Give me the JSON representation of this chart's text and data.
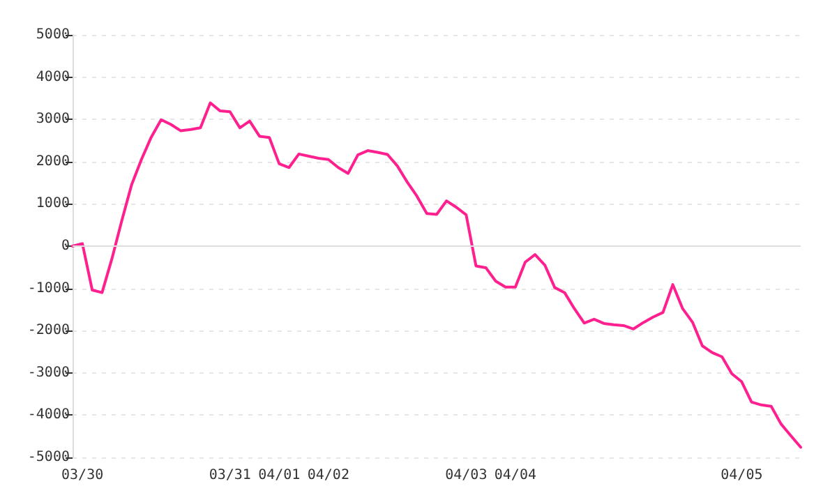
{
  "chart_data": {
    "type": "line",
    "categories": [
      null,
      "03/30",
      null,
      null,
      null,
      null,
      null,
      null,
      null,
      null,
      null,
      null,
      null,
      null,
      null,
      null,
      "03/31",
      null,
      null,
      null,
      null,
      "04/01",
      null,
      null,
      null,
      null,
      "04/02",
      null,
      null,
      null,
      null,
      null,
      null,
      null,
      null,
      null,
      null,
      null,
      null,
      null,
      "04/03",
      null,
      null,
      null,
      null,
      "04/04",
      null,
      null,
      null,
      null,
      null,
      null,
      null,
      null,
      null,
      null,
      null,
      null,
      null,
      null,
      null,
      null,
      null,
      null,
      null,
      null,
      null,
      null,
      "04/05",
      null,
      null,
      null,
      null,
      null,
      null
    ],
    "series": [
      {
        "color": "#ff2090",
        "values": [
          0,
          60,
          -1040,
          -1100,
          -300,
          600,
          1450,
          2050,
          2580,
          2990,
          2880,
          2730,
          2760,
          2800,
          3390,
          3200,
          3180,
          2800,
          2960,
          2600,
          2570,
          1950,
          1860,
          2180,
          2130,
          2080,
          2050,
          1860,
          1720,
          2160,
          2260,
          2220,
          2170,
          1900,
          1520,
          1180,
          770,
          750,
          1070,
          920,
          740,
          -470,
          -510,
          -830,
          -970,
          -970,
          -380,
          -200,
          -450,
          -980,
          -1100,
          -1480,
          -1820,
          -1730,
          -1830,
          -1860,
          -1880,
          -1960,
          -1810,
          -1680,
          -1570,
          -910,
          -1480,
          -1800,
          -2360,
          -2520,
          -2620,
          -3020,
          -3210,
          -3690,
          -3760,
          -3790,
          -4210,
          -4490,
          -4760
        ]
      }
    ],
    "ylim": [
      -5000,
      5000
    ],
    "yticks": [
      -5000,
      -4000,
      -3000,
      -2000,
      -1000,
      0,
      1000,
      2000,
      3000,
      4000,
      5000
    ],
    "ref_lines": [
      {
        "axis": "y",
        "value": 0,
        "color": "#dddddd",
        "line_style": "solid"
      }
    ],
    "grid": "y",
    "marker": "none",
    "line_style": "solid"
  }
}
